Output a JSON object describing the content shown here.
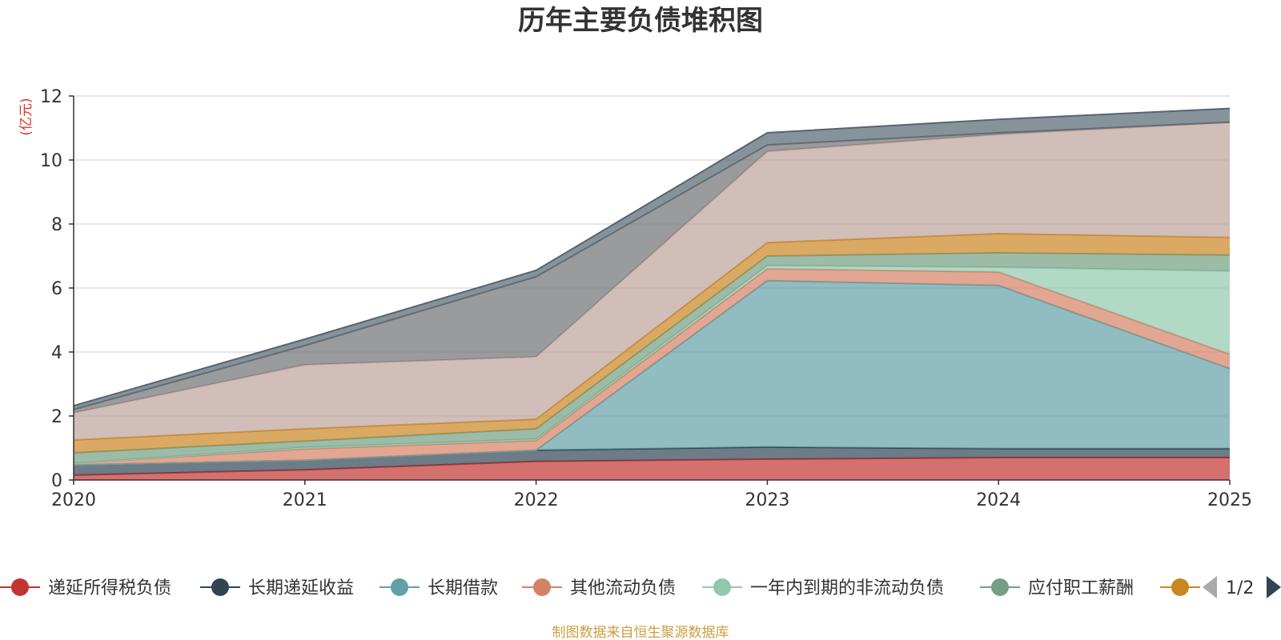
{
  "chart_data": {
    "type": "area",
    "stacked": true,
    "title": "历年主要负债堆积图",
    "ylabel": "(亿元)",
    "xlabel": "",
    "ylim": [
      0,
      12
    ],
    "yticks": [
      0,
      2,
      4,
      6,
      8,
      10,
      12
    ],
    "x": [
      "2020",
      "2021",
      "2022",
      "2023",
      "2024",
      "2025"
    ],
    "grid": true,
    "series": [
      {
        "name": "递延所得税负债",
        "color": "#c23531",
        "values": [
          0.15,
          0.32,
          0.58,
          0.65,
          0.7,
          0.7
        ]
      },
      {
        "name": "长期递延收益",
        "color": "#2f4554",
        "values": [
          0.32,
          0.3,
          0.35,
          0.38,
          0.28,
          0.28
        ]
      },
      {
        "name": "长期借款",
        "color": "#61a0a8",
        "values": [
          0.0,
          0.0,
          0.0,
          5.2,
          5.1,
          2.5
        ]
      },
      {
        "name": "其他流动负债",
        "color": "#d48265",
        "values": [
          0.05,
          0.35,
          0.3,
          0.37,
          0.42,
          0.45
        ]
      },
      {
        "name": "一年内到期的非流动负债",
        "color": "#91c7ae",
        "values": [
          0.0,
          0.05,
          0.05,
          0.1,
          0.15,
          2.6
        ]
      },
      {
        "name": "应付职工薪酬",
        "color": "#749f83",
        "values": [
          0.33,
          0.2,
          0.32,
          0.3,
          0.45,
          0.5
        ]
      },
      {
        "name": "",
        "color": "#ca8622",
        "values": [
          0.4,
          0.38,
          0.3,
          0.42,
          0.6,
          0.55
        ]
      },
      {
        "name": "",
        "color": "#bda29a",
        "values": [
          0.85,
          2.0,
          1.95,
          2.85,
          3.1,
          3.6
        ]
      },
      {
        "name": "",
        "color": "#6e7074",
        "values": [
          0.1,
          0.6,
          2.5,
          0.2,
          0.05,
          0.0
        ]
      },
      {
        "name": "",
        "color": "#546570",
        "values": [
          0.12,
          0.2,
          0.2,
          0.38,
          0.42,
          0.43
        ]
      }
    ],
    "legend": {
      "position": "bottom",
      "page": "1/2",
      "visible_count": 7
    }
  },
  "source_note": "制图数据来自恒生聚源数据库"
}
